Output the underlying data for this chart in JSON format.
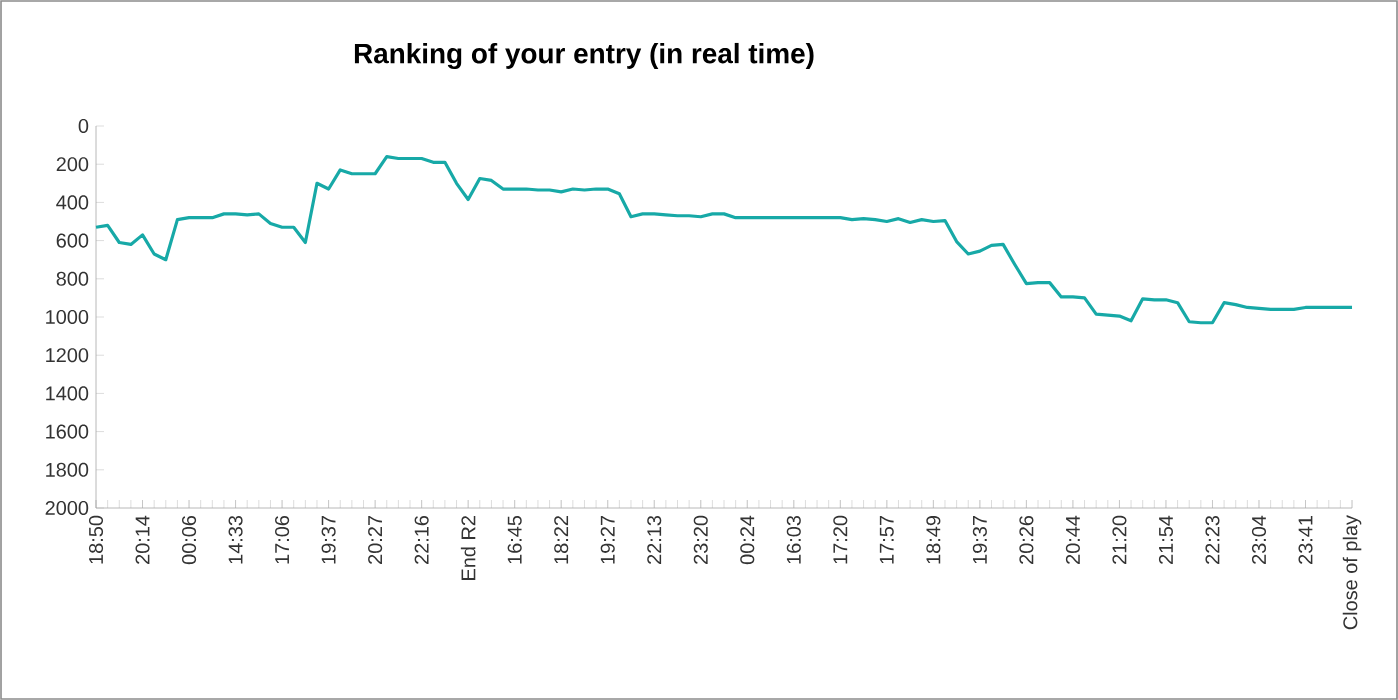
{
  "chart_data": {
    "type": "line",
    "title": "Ranking of your entry (in real time)",
    "categories": [
      "18:50",
      null,
      null,
      null,
      "20:14",
      null,
      null,
      null,
      "00:06",
      null,
      null,
      null,
      "14:33",
      null,
      null,
      null,
      "17:06",
      null,
      null,
      null,
      "19:37",
      null,
      null,
      null,
      "20:27",
      null,
      null,
      null,
      "22:16",
      null,
      null,
      null,
      "End R2",
      null,
      null,
      null,
      "16:45",
      null,
      null,
      null,
      "18:22",
      null,
      null,
      null,
      "19:27",
      null,
      null,
      null,
      "22:13",
      null,
      null,
      null,
      "23:20",
      null,
      null,
      null,
      "00:24",
      null,
      null,
      null,
      "16:03",
      null,
      null,
      null,
      "17:20",
      null,
      null,
      null,
      "17:57",
      null,
      null,
      null,
      "18:49",
      null,
      null,
      null,
      "19:37",
      null,
      null,
      null,
      "20:26",
      null,
      null,
      null,
      "20:44",
      null,
      null,
      null,
      "21:20",
      null,
      null,
      null,
      "21:54",
      null,
      null,
      null,
      "22:23",
      null,
      null,
      null,
      "23:04",
      null,
      null,
      null,
      "23:41",
      null,
      null,
      null,
      "Close of play"
    ],
    "series": [
      {
        "color": "#17a9a7",
        "values": [
          530,
          520,
          610,
          620,
          570,
          670,
          700,
          490,
          480,
          480,
          480,
          460,
          460,
          465,
          460,
          510,
          530,
          530,
          610,
          300,
          330,
          230,
          250,
          250,
          250,
          160,
          170,
          170,
          170,
          190,
          190,
          300,
          385,
          275,
          285,
          330,
          330,
          330,
          335,
          335,
          345,
          330,
          335,
          330,
          330,
          355,
          475,
          460,
          460,
          465,
          470,
          470,
          475,
          460,
          460,
          480,
          480,
          480,
          480,
          480,
          480,
          480,
          480,
          480,
          480,
          490,
          485,
          490,
          500,
          485,
          505,
          490,
          500,
          495,
          605,
          670,
          655,
          625,
          620,
          725,
          825,
          820,
          820,
          895,
          895,
          900,
          985,
          990,
          995,
          1020,
          905,
          910,
          910,
          925,
          1025,
          1030,
          1030,
          925,
          935,
          950,
          955,
          960,
          960,
          960,
          950,
          950,
          950,
          950,
          950
        ]
      }
    ],
    "ylim": [
      2000,
      0
    ],
    "yticks": [
      0,
      200,
      400,
      600,
      800,
      1000,
      1200,
      1400,
      1600,
      1800,
      2000
    ],
    "grid": false,
    "legend": false,
    "marker": "none",
    "line_style": "solid"
  }
}
